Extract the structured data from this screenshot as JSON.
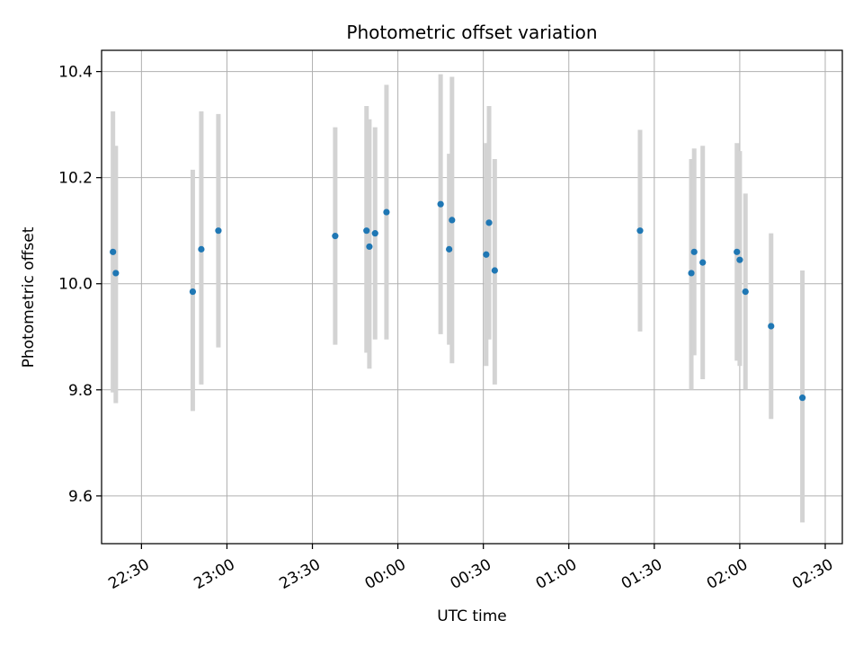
{
  "chart_data": {
    "type": "scatter",
    "title": "Photometric offset variation",
    "xlabel": "UTC time",
    "ylabel": "Photometric offset",
    "xlim": [
      "22:16",
      "02:36"
    ],
    "ylim": [
      9.51,
      10.44
    ],
    "grid": true,
    "x_ticks": [
      "22:30",
      "23:00",
      "23:30",
      "00:00",
      "00:30",
      "01:00",
      "01:30",
      "02:00",
      "02:30"
    ],
    "y_ticks": [
      9.6,
      9.8,
      10.0,
      10.2,
      10.4
    ],
    "y_tick_labels": [
      "9.6",
      "9.8",
      "10.0",
      "10.2",
      "10.4"
    ],
    "marker_color": "#1f77b4",
    "errorbar_color": "#d3d3d3",
    "points": [
      {
        "x": "22:20",
        "y": 10.06,
        "lo": 9.795,
        "hi": 10.325
      },
      {
        "x": "22:21",
        "y": 10.02,
        "lo": 9.775,
        "hi": 10.26
      },
      {
        "x": "22:48",
        "y": 9.985,
        "lo": 9.76,
        "hi": 10.215
      },
      {
        "x": "22:51",
        "y": 10.065,
        "lo": 9.81,
        "hi": 10.325
      },
      {
        "x": "22:57",
        "y": 10.1,
        "lo": 9.88,
        "hi": 10.32
      },
      {
        "x": "23:38",
        "y": 10.09,
        "lo": 9.885,
        "hi": 10.295
      },
      {
        "x": "23:49",
        "y": 10.1,
        "lo": 9.87,
        "hi": 10.335
      },
      {
        "x": "23:50",
        "y": 10.07,
        "lo": 9.84,
        "hi": 10.31
      },
      {
        "x": "23:52",
        "y": 10.095,
        "lo": 9.895,
        "hi": 10.295
      },
      {
        "x": "23:56",
        "y": 10.135,
        "lo": 9.895,
        "hi": 10.375
      },
      {
        "x": "00:15",
        "y": 10.15,
        "lo": 9.905,
        "hi": 10.395
      },
      {
        "x": "00:18",
        "y": 10.065,
        "lo": 9.885,
        "hi": 10.245
      },
      {
        "x": "00:19",
        "y": 10.12,
        "lo": 9.85,
        "hi": 10.39
      },
      {
        "x": "00:31",
        "y": 10.055,
        "lo": 9.845,
        "hi": 10.265
      },
      {
        "x": "00:32",
        "y": 10.115,
        "lo": 9.895,
        "hi": 10.335
      },
      {
        "x": "00:34",
        "y": 10.025,
        "lo": 9.81,
        "hi": 10.235
      },
      {
        "x": "01:25",
        "y": 10.1,
        "lo": 9.91,
        "hi": 10.29
      },
      {
        "x": "01:43",
        "y": 10.02,
        "lo": 9.8,
        "hi": 10.235
      },
      {
        "x": "01:44",
        "y": 10.06,
        "lo": 9.865,
        "hi": 10.255
      },
      {
        "x": "01:47",
        "y": 10.04,
        "lo": 9.82,
        "hi": 10.26
      },
      {
        "x": "01:59",
        "y": 10.06,
        "lo": 9.855,
        "hi": 10.265
      },
      {
        "x": "02:00",
        "y": 10.045,
        "lo": 9.845,
        "hi": 10.25
      },
      {
        "x": "02:02",
        "y": 9.985,
        "lo": 9.8,
        "hi": 10.17
      },
      {
        "x": "02:11",
        "y": 9.92,
        "lo": 9.745,
        "hi": 10.095
      },
      {
        "x": "02:22",
        "y": 9.785,
        "lo": 9.55,
        "hi": 10.025
      }
    ]
  }
}
